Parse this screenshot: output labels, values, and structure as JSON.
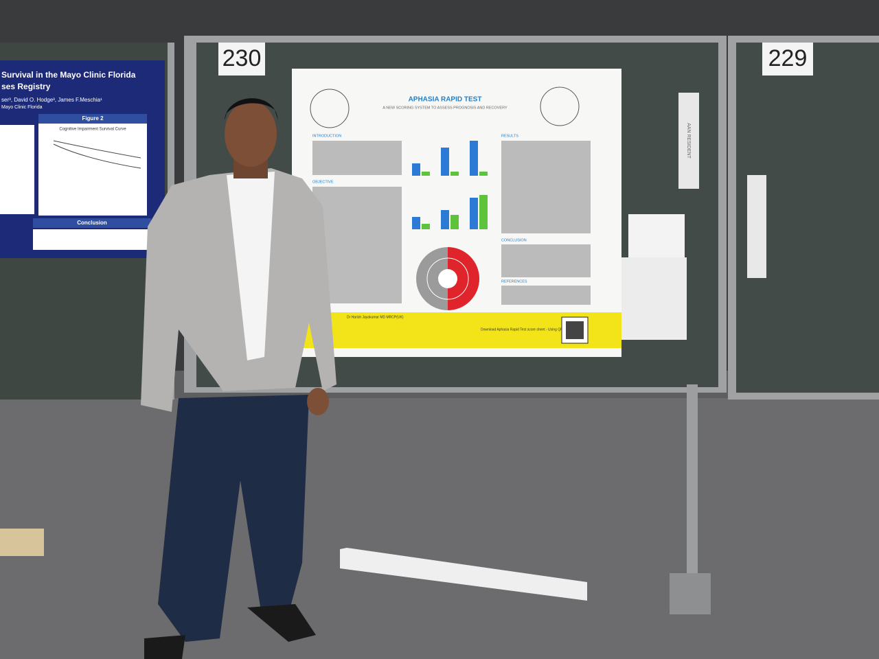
{
  "booth_numbers": [
    "230",
    "229"
  ],
  "left_poster": {
    "title_line1": "Survival in the Mayo Clinic Florida",
    "title_line2": "ses Registry",
    "authors": "ser³, David O. Hodge³, James F.Meschia¹",
    "affiliation": "Mayo Clinic Florida",
    "figure_label": "Figure 2",
    "chart_title": "Cognitive Impairment Survival Curve",
    "conclusion": "Conclusion"
  },
  "main_poster": {
    "title": "APHASIA RAPID TEST",
    "subtitle": "A NEW SCORING SYSTEM TO ASSESS PROGNOSIS AND RECOVERY",
    "sections": [
      "INTRODUCTION",
      "OBJECTIVE",
      "RESULTS",
      "CONCLUSION",
      "REFERENCES"
    ],
    "author_box": "Dr Harish Jayakumar MD MRCP(UK)",
    "footer": "Download Aphasia Rapid Test score sheet - Using QR Code Reader"
  },
  "badge": "AAN RESIDENT"
}
